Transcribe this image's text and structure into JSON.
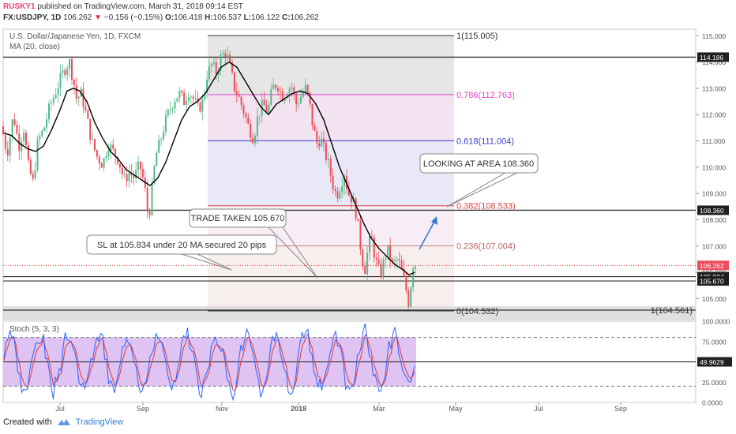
{
  "header": {
    "author": "RUSKY1",
    "published_text": "published on TradingView.com, March 31, 2018 09:14 EST",
    "symbol_line": "FX:USDJPY, 1D",
    "last": "106.262",
    "change": "−0.156 (−0.15%)",
    "o_label": "O:",
    "o": "106.418",
    "h_label": "H:",
    "h": "106.537",
    "l_label": "L:",
    "l": "106.122",
    "c_label": "C:",
    "c": "106.262"
  },
  "legend": {
    "instrument": "U.S. Dollar/Japanese Yen, 1D, FXCM",
    "ma": "MA (20, close)",
    "stoch": "Stoch (5, 3, 3)"
  },
  "footer": {
    "created_with": "Created with",
    "brand": "TradingView"
  },
  "colors": {
    "bull": "#53b987",
    "bear": "#eb4d5c",
    "ma": "#000000",
    "stoch_k": "#2962ff",
    "stoch_d": "#e53935",
    "stoch_band": "#d9b8f0",
    "arrow": "#2f7bd8",
    "fib_magenta": "#e040c8",
    "fib_blue": "#3b3bd6",
    "fib_red": "#e04040"
  },
  "chart_data": {
    "type": "candlestick",
    "y_axis_ticks": [
      "115.000",
      "114.000",
      "113.000",
      "112.000",
      "111.000",
      "110.000",
      "109.000",
      "108.000",
      "107.000",
      "106.000",
      "105.000"
    ],
    "x_axis_ticks": [
      "Jul",
      "Sep",
      "Nov",
      "2018",
      "Mar",
      "May",
      "Jul",
      "Sep"
    ],
    "ylim": [
      104.2,
      115.25
    ],
    "price_labels": [
      {
        "value": 114.186,
        "text": "114.186",
        "style": "dark"
      },
      {
        "value": 108.36,
        "text": "108.360",
        "style": "dark"
      },
      {
        "value": 106.262,
        "text": "106.262",
        "style": "last"
      },
      {
        "value": 105.834,
        "text": "105.834",
        "style": "dark"
      },
      {
        "value": 105.67,
        "text": "105.670",
        "style": "dark"
      }
    ],
    "horizontal_lines": [
      114.186,
      108.36,
      105.834,
      105.67,
      104.561
    ],
    "fibonacci": [
      {
        "level": "1",
        "price": 115.005,
        "label": "1(115.005)"
      },
      {
        "level": "0.786",
        "price": 112.763,
        "label": "0.786(112.763)"
      },
      {
        "level": "0.618",
        "price": 111.004,
        "label": "0.618(111.004)"
      },
      {
        "level": "0.382",
        "price": 108.533,
        "label": "0.382(108.533)"
      },
      {
        "level": "0.236",
        "price": 107.004,
        "label": "0.236(107.004)"
      },
      {
        "level": "0",
        "price": 104.532,
        "label": "0(104.532)"
      }
    ],
    "right_label": "1(104.561)",
    "annotations": [
      {
        "id": "look",
        "text": "LOOKING AT AREA 108.360"
      },
      {
        "id": "trade",
        "text": "TRADE TAKEN 105.670"
      },
      {
        "id": "sl",
        "text": "SL at 105.834 under 20 MA secured 20 pips"
      }
    ],
    "stoch_ticks": [
      "100.0000",
      "75.0000",
      "49.9629",
      "25.0000",
      "0.0000"
    ],
    "stoch_ylim": [
      0,
      100
    ],
    "stoch_band": [
      20,
      80
    ],
    "stoch_last": 49.9629,
    "close_path": [
      [
        1,
        111.7
      ],
      [
        9,
        110.5
      ],
      [
        17,
        112.0
      ],
      [
        24,
        110.8
      ],
      [
        30,
        111.5
      ],
      [
        36,
        110.0
      ],
      [
        42,
        109.4
      ],
      [
        48,
        111.0
      ],
      [
        55,
        111.4
      ],
      [
        63,
        112.3
      ],
      [
        71,
        112.9
      ],
      [
        77,
        113.4
      ],
      [
        83,
        113.8
      ],
      [
        88,
        114.0
      ],
      [
        93,
        113.3
      ],
      [
        97,
        112.6
      ],
      [
        103,
        112.8
      ],
      [
        109,
        112.0
      ],
      [
        116,
        111.0
      ],
      [
        123,
        110.4
      ],
      [
        130,
        110.1
      ],
      [
        137,
        110.9
      ],
      [
        143,
        110.6
      ],
      [
        150,
        110.3
      ],
      [
        157,
        109.5
      ],
      [
        164,
        109.8
      ],
      [
        170,
        109.6
      ],
      [
        177,
        110.1
      ],
      [
        183,
        109.3
      ],
      [
        188,
        108.0
      ],
      [
        192,
        109.0
      ],
      [
        197,
        110.4
      ],
      [
        203,
        111.0
      ],
      [
        209,
        111.7
      ],
      [
        215,
        112.2
      ],
      [
        221,
        112.6
      ],
      [
        227,
        112.8
      ],
      [
        233,
        112.5
      ],
      [
        239,
        112.9
      ],
      [
        245,
        112.6
      ],
      [
        251,
        112.2
      ],
      [
        257,
        112.5
      ],
      [
        262,
        113.5
      ],
      [
        268,
        113.9
      ],
      [
        274,
        113.6
      ],
      [
        280,
        114.2
      ],
      [
        286,
        114.4
      ],
      [
        292,
        113.7
      ],
      [
        297,
        113.0
      ],
      [
        303,
        112.6
      ],
      [
        309,
        112.1
      ],
      [
        315,
        111.5
      ],
      [
        321,
        111.1
      ],
      [
        327,
        112.0
      ],
      [
        333,
        112.4
      ],
      [
        339,
        112.1
      ],
      [
        345,
        113.0
      ],
      [
        351,
        113.2
      ],
      [
        357,
        112.7
      ],
      [
        363,
        112.9
      ],
      [
        369,
        113.1
      ],
      [
        375,
        112.4
      ],
      [
        381,
        112.7
      ],
      [
        387,
        113.0
      ],
      [
        391,
        112.6
      ],
      [
        396,
        111.6
      ],
      [
        401,
        110.9
      ],
      [
        406,
        111.1
      ],
      [
        411,
        110.6
      ],
      [
        416,
        110.1
      ],
      [
        421,
        109.4
      ],
      [
        426,
        108.9
      ],
      [
        431,
        109.3
      ],
      [
        436,
        109.8
      ],
      [
        441,
        109.0
      ],
      [
        446,
        108.8
      ],
      [
        450,
        108.4
      ],
      [
        454,
        107.6
      ],
      [
        458,
        106.6
      ],
      [
        462,
        106.1
      ],
      [
        466,
        106.9
      ],
      [
        470,
        107.4
      ],
      [
        474,
        106.7
      ],
      [
        478,
        106.2
      ],
      [
        482,
        105.9
      ],
      [
        486,
        106.4
      ],
      [
        490,
        106.9
      ],
      [
        494,
        106.6
      ],
      [
        498,
        106.2
      ],
      [
        502,
        106.5
      ],
      [
        506,
        106.3
      ],
      [
        510,
        105.9
      ],
      [
        514,
        105.4
      ],
      [
        517,
        104.8
      ],
      [
        520,
        105.5
      ],
      [
        523,
        106.3
      ],
      [
        526,
        106.3
      ]
    ],
    "ma20_path": [
      [
        5,
        111.3
      ],
      [
        15,
        111.2
      ],
      [
        25,
        110.9
      ],
      [
        35,
        110.7
      ],
      [
        45,
        110.6
      ],
      [
        55,
        110.8
      ],
      [
        65,
        111.4
      ],
      [
        75,
        112.1
      ],
      [
        85,
        112.9
      ],
      [
        93,
        113.0
      ],
      [
        101,
        112.9
      ],
      [
        110,
        112.5
      ],
      [
        120,
        111.7
      ],
      [
        130,
        111.1
      ],
      [
        140,
        110.6
      ],
      [
        150,
        110.3
      ],
      [
        160,
        109.9
      ],
      [
        170,
        109.7
      ],
      [
        180,
        109.5
      ],
      [
        190,
        109.3
      ],
      [
        200,
        109.6
      ],
      [
        210,
        110.2
      ],
      [
        220,
        111.0
      ],
      [
        230,
        111.8
      ],
      [
        240,
        112.3
      ],
      [
        250,
        112.5
      ],
      [
        260,
        112.8
      ],
      [
        270,
        113.3
      ],
      [
        280,
        113.8
      ],
      [
        290,
        114.0
      ],
      [
        300,
        113.8
      ],
      [
        310,
        113.3
      ],
      [
        320,
        112.8
      ],
      [
        330,
        112.3
      ],
      [
        340,
        112.0
      ],
      [
        350,
        112.4
      ],
      [
        360,
        112.6
      ],
      [
        370,
        112.8
      ],
      [
        380,
        112.9
      ],
      [
        390,
        112.8
      ],
      [
        400,
        112.4
      ],
      [
        410,
        111.8
      ],
      [
        420,
        110.9
      ],
      [
        430,
        110.0
      ],
      [
        440,
        109.3
      ],
      [
        450,
        108.6
      ],
      [
        460,
        107.9
      ],
      [
        470,
        107.3
      ],
      [
        480,
        106.9
      ],
      [
        490,
        106.6
      ],
      [
        500,
        106.3
      ],
      [
        510,
        106.1
      ],
      [
        518,
        105.9
      ],
      [
        525,
        106.0
      ]
    ]
  }
}
